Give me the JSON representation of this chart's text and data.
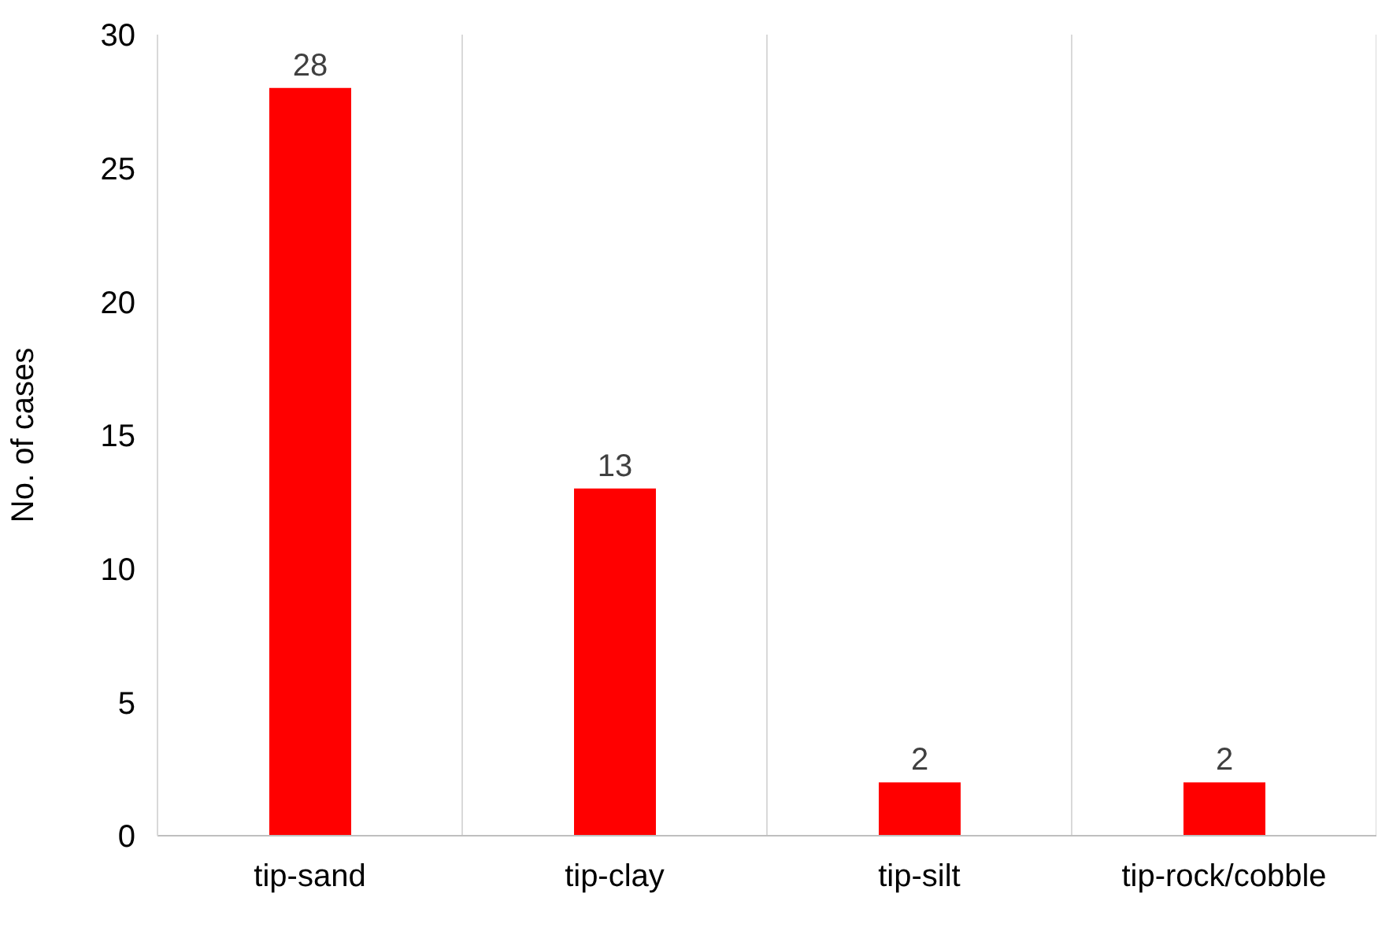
{
  "chart_data": {
    "type": "bar",
    "ylabel": "No. of cases",
    "categories": [
      "tip-sand",
      "tip-clay",
      "tip-silt",
      "tip-rock/cobble"
    ],
    "values": [
      28,
      13,
      2,
      2
    ],
    "color": "#ff0000",
    "ylim": [
      0,
      30
    ],
    "yticks": [
      0,
      5,
      10,
      15,
      20,
      25,
      30
    ],
    "grid": "x",
    "data_labels": true,
    "legend": false
  }
}
